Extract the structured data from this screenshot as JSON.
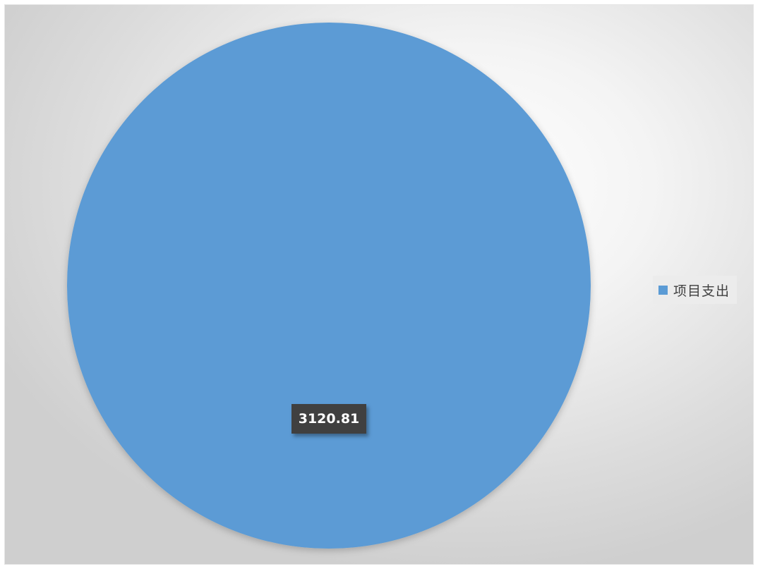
{
  "chart_data": {
    "type": "pie",
    "title": "",
    "categories": [
      "项目支出"
    ],
    "values": [
      3120.81
    ],
    "data_labels": [
      "3120.81"
    ],
    "legend": {
      "placement": "right",
      "entries": [
        "项目支出"
      ]
    },
    "colors": [
      "#5b9bd5"
    ],
    "label_color": "#404040"
  }
}
